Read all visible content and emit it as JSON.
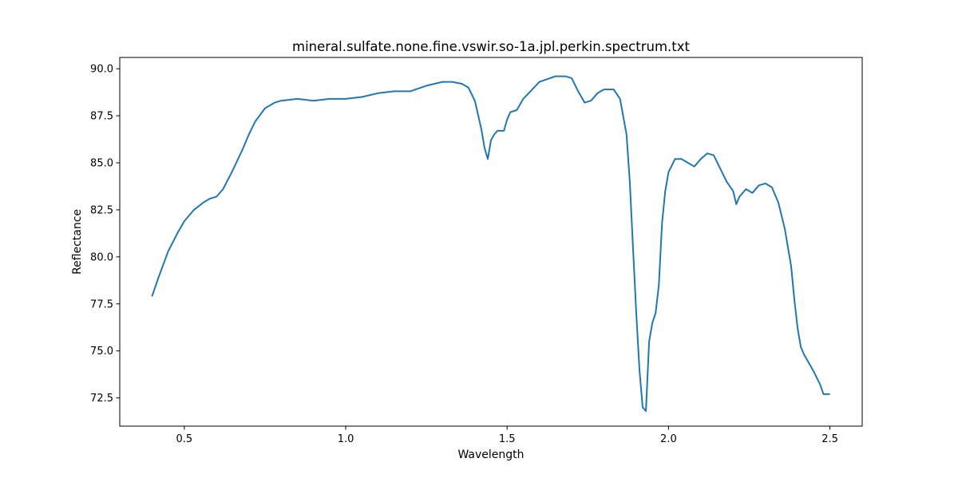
{
  "chart_data": {
    "type": "line",
    "title": "mineral.sulfate.none.fine.vswir.so-1a.jpl.perkin.spectrum.txt",
    "xlabel": "Wavelength",
    "ylabel": "Reflectance",
    "xlim": [
      0.3,
      2.6
    ],
    "ylim": [
      71.0,
      90.6
    ],
    "xticks": [
      "0.5",
      "1.0",
      "1.5",
      "2.0",
      "2.5"
    ],
    "yticks": [
      "72.5",
      "75.0",
      "77.5",
      "80.0",
      "82.5",
      "85.0",
      "87.5",
      "90.0"
    ],
    "grid": false,
    "line_color": "#1f77b4",
    "series": [
      {
        "x": [
          0.4,
          0.42,
          0.45,
          0.48,
          0.5,
          0.53,
          0.56,
          0.58,
          0.6,
          0.62,
          0.65,
          0.68,
          0.7,
          0.72,
          0.75,
          0.78,
          0.8,
          0.85,
          0.9,
          0.95,
          1.0,
          1.05,
          1.1,
          1.15,
          1.2,
          1.25,
          1.3,
          1.33,
          1.36,
          1.38,
          1.4,
          1.42,
          1.43,
          1.44,
          1.45,
          1.46,
          1.47,
          1.49,
          1.5,
          1.51,
          1.53,
          1.55,
          1.6,
          1.65,
          1.68,
          1.7,
          1.72,
          1.74,
          1.76,
          1.78,
          1.8,
          1.83,
          1.85,
          1.87,
          1.88,
          1.89,
          1.9,
          1.91,
          1.92,
          1.93,
          1.94,
          1.95,
          1.96,
          1.97,
          1.98,
          1.99,
          2.0,
          2.02,
          2.04,
          2.06,
          2.08,
          2.1,
          2.12,
          2.14,
          2.16,
          2.18,
          2.2,
          2.21,
          2.22,
          2.24,
          2.26,
          2.28,
          2.3,
          2.32,
          2.34,
          2.36,
          2.38,
          2.39,
          2.4,
          2.41,
          2.42,
          2.43,
          2.45,
          2.47,
          2.48,
          2.49,
          2.5
        ],
        "y": [
          77.9,
          78.9,
          80.3,
          81.3,
          81.9,
          82.5,
          82.9,
          83.1,
          83.2,
          83.6,
          84.6,
          85.7,
          86.5,
          87.2,
          87.9,
          88.2,
          88.3,
          88.4,
          88.3,
          88.4,
          88.4,
          88.5,
          88.7,
          88.8,
          88.8,
          89.1,
          89.3,
          89.3,
          89.2,
          89.0,
          88.3,
          86.8,
          85.8,
          85.2,
          86.2,
          86.5,
          86.7,
          86.7,
          87.3,
          87.7,
          87.8,
          88.4,
          89.3,
          89.6,
          89.6,
          89.5,
          88.8,
          88.2,
          88.3,
          88.7,
          88.9,
          88.9,
          88.4,
          86.5,
          84.0,
          80.5,
          77.0,
          74.0,
          72.0,
          71.8,
          75.5,
          76.5,
          77.0,
          78.5,
          81.8,
          83.5,
          84.5,
          85.2,
          85.2,
          85.0,
          84.8,
          85.2,
          85.5,
          85.4,
          84.7,
          84.0,
          83.5,
          82.8,
          83.2,
          83.6,
          83.4,
          83.8,
          83.9,
          83.7,
          82.9,
          81.5,
          79.5,
          77.7,
          76.2,
          75.2,
          74.8,
          74.5,
          73.9,
          73.2,
          72.7,
          72.7,
          72.7
        ]
      }
    ]
  }
}
